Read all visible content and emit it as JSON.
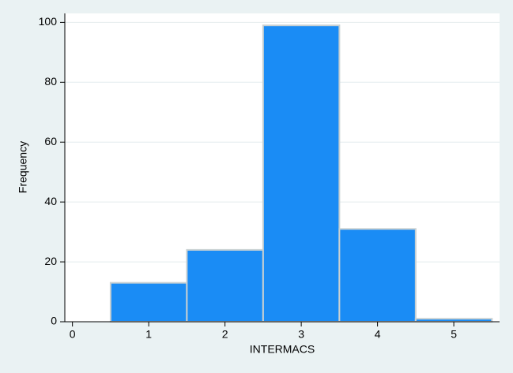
{
  "chart_data": {
    "type": "histogram",
    "xlabel": "INTERMACS",
    "ylabel": "Frequency",
    "bins": [
      0.5,
      1.5,
      2.5,
      3.5,
      4.5,
      5.5
    ],
    "values": [
      13,
      24,
      99,
      31,
      1
    ],
    "color": "#1a8cf5",
    "xlim": [
      -0.1,
      5.6
    ],
    "ylim": [
      0,
      103
    ],
    "xticks": [
      0,
      1,
      2,
      3,
      4,
      5
    ],
    "yticks": [
      0,
      20,
      40,
      60,
      80,
      100
    ],
    "grid": true
  }
}
